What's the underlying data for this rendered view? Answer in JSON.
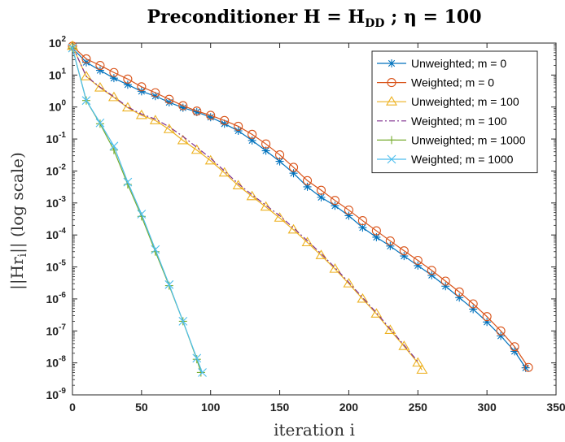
{
  "chart_data": {
    "type": "line",
    "title_main": "Preconditioner H = H",
    "title_sub": "DD",
    "title_tail": " ; η = 100",
    "xlabel": "iteration i",
    "ylabel": "||Hr",
    "ylabel_sub": "i",
    "ylabel_tail": "|| (log scale)",
    "yscale": "log",
    "xlim": [
      0,
      350
    ],
    "ylim_exp": [
      -9,
      2
    ],
    "x_ticks": [
      0,
      50,
      100,
      150,
      200,
      250,
      300,
      350
    ],
    "y_tick_exps": [
      -9,
      -8,
      -7,
      -6,
      -5,
      -4,
      -3,
      -2,
      -1,
      0,
      1,
      2
    ],
    "y_tick_base": "10",
    "legend_position": "top-right",
    "grid": false,
    "series": [
      {
        "name": "Unweighted; m = 0",
        "color": "#0072BD",
        "marker": "asterisk",
        "x": [
          0,
          10,
          20,
          30,
          40,
          50,
          60,
          70,
          80,
          90,
          100,
          110,
          120,
          130,
          140,
          150,
          160,
          170,
          180,
          190,
          200,
          210,
          220,
          230,
          240,
          250,
          260,
          270,
          280,
          290,
          300,
          310,
          320,
          328
        ],
        "y": [
          70,
          25,
          14,
          8,
          5,
          3.1,
          2.2,
          1.4,
          0.95,
          0.7,
          0.48,
          0.3,
          0.18,
          0.09,
          0.043,
          0.02,
          0.0085,
          0.0032,
          0.0015,
          0.00082,
          0.0004,
          0.00017,
          8.5e-05,
          4.5e-05,
          2.2e-05,
          1.1e-05,
          5.5e-06,
          2.5e-06,
          1.1e-06,
          4.8e-07,
          1.9e-07,
          7e-08,
          2.3e-08,
          7e-09
        ]
      },
      {
        "name": "Weighted; m = 0",
        "color": "#D95319",
        "marker": "circle",
        "x": [
          0,
          10,
          20,
          30,
          40,
          50,
          60,
          70,
          80,
          90,
          100,
          110,
          120,
          130,
          140,
          150,
          160,
          170,
          180,
          190,
          200,
          210,
          220,
          230,
          240,
          250,
          260,
          270,
          280,
          290,
          300,
          310,
          320,
          330
        ],
        "y": [
          80,
          32,
          20,
          12,
          7.5,
          4.3,
          2.8,
          1.75,
          1.1,
          0.75,
          0.55,
          0.38,
          0.25,
          0.14,
          0.07,
          0.032,
          0.013,
          0.005,
          0.0025,
          0.0012,
          0.0006,
          0.00028,
          0.000135,
          6.5e-05,
          3.2e-05,
          1.6e-05,
          7.8e-06,
          3.6e-06,
          1.65e-06,
          7e-07,
          2.8e-07,
          1e-07,
          3.2e-08,
          7.2e-09
        ]
      },
      {
        "name": "Unweighted; m = 100",
        "color": "#EDB120",
        "marker": "triangle",
        "x": [
          0,
          10,
          20,
          30,
          40,
          50,
          60,
          70,
          80,
          90,
          100,
          110,
          120,
          130,
          140,
          150,
          160,
          170,
          180,
          190,
          200,
          210,
          220,
          230,
          240,
          250,
          253
        ],
        "y": [
          80,
          9,
          4,
          2,
          0.95,
          0.55,
          0.38,
          0.2,
          0.09,
          0.045,
          0.021,
          0.0088,
          0.0035,
          0.0016,
          0.00075,
          0.00034,
          0.000145,
          5.8e-05,
          2.3e-05,
          8.6e-06,
          3e-06,
          1e-06,
          3.4e-07,
          1.05e-07,
          3.3e-08,
          1e-08,
          6e-09
        ]
      },
      {
        "name": "Weighted; m = 100",
        "color": "#7E2F8E",
        "marker": "dashdot",
        "x": [
          0,
          10,
          20,
          30,
          40,
          50,
          60,
          70,
          80,
          90,
          100,
          110,
          120,
          130,
          140,
          150,
          160,
          170,
          180,
          190,
          200,
          210,
          220,
          230,
          240,
          250
        ],
        "y": [
          80,
          9.2,
          4.2,
          2.1,
          1,
          0.6,
          0.42,
          0.24,
          0.12,
          0.055,
          0.025,
          0.01,
          0.004,
          0.0018,
          0.00085,
          0.0004,
          0.000165,
          6.6e-05,
          2.6e-05,
          9.5e-06,
          3.3e-06,
          1.1e-06,
          3.7e-07,
          1.15e-07,
          3.6e-08,
          1.1e-08
        ]
      },
      {
        "name": "Unweighted; m = 1000",
        "color": "#77AC30",
        "marker": "plus",
        "x": [
          0,
          10,
          20,
          30,
          40,
          50,
          60,
          70,
          80,
          90,
          93
        ],
        "y": [
          70,
          1.6,
          0.3,
          0.045,
          0.0038,
          0.00038,
          3e-05,
          2.6e-06,
          2e-07,
          1.3e-08,
          5e-09
        ]
      },
      {
        "name": "Weighted; m = 1000",
        "color": "#4DBEEE",
        "marker": "cross",
        "x": [
          0,
          10,
          20,
          30,
          40,
          50,
          60,
          70,
          80,
          90,
          94
        ],
        "y": [
          70,
          1.6,
          0.32,
          0.06,
          0.0045,
          0.00045,
          3.5e-05,
          2.8e-06,
          2e-07,
          1.4e-08,
          5e-09
        ]
      }
    ]
  }
}
